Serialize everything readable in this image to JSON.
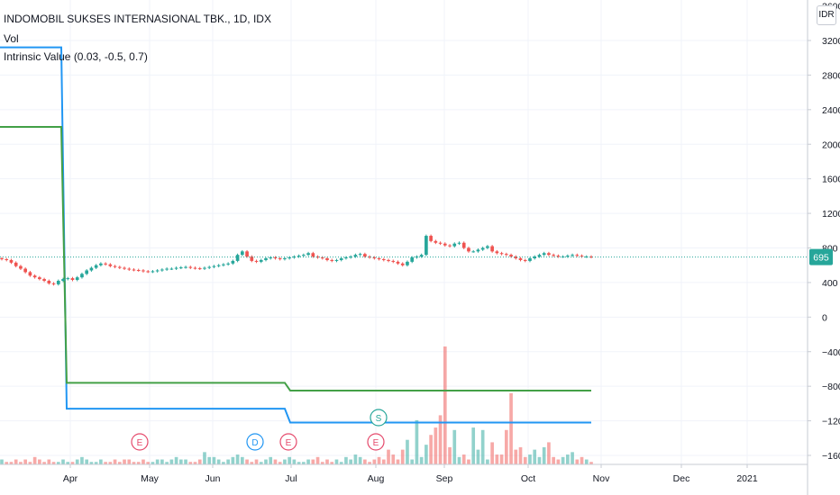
{
  "header": {
    "symbol_title": "INDOMOBIL SUKSES INTERNASIONAL TBK., 1D, IDX",
    "vol_label": "Vol",
    "indicator_label": "Intrinsic Value (0.03, -0.5, 0.7)",
    "currency_button": "IDR"
  },
  "chart_data": {
    "type": "line",
    "title": "INDOMOBIL SUKSES INTERNASIONAL TBK., 1D, IDX",
    "currency": "IDR",
    "last_price": 695,
    "last_price_label": "695",
    "y_axis": {
      "ylim": [
        -1700,
        3700
      ],
      "ticks": [
        3200,
        2800,
        2400,
        2000,
        1600,
        1200,
        800,
        400,
        0,
        -400,
        -800,
        -1200,
        -1600
      ],
      "tick_labels": [
        "3200",
        "2800",
        "2400",
        "2000",
        "1600",
        "1200",
        "800",
        "400",
        "0",
        "−400",
        "−800",
        "−1200",
        "−1600"
      ],
      "top_partial_label": "3600"
    },
    "x_axis": {
      "tick_labels": [
        "Apr",
        "May",
        "Jun",
        "Jul",
        "Aug",
        "Sep",
        "Oct",
        "Nov",
        "Dec",
        "2021"
      ]
    },
    "grid": true,
    "colors": {
      "up": "#26a69a",
      "down": "#ef5350",
      "blue_line": "#2196f3",
      "green_line": "#43a047",
      "price_line": "#26a69a"
    },
    "price_close_series": [
      670,
      660,
      630,
      590,
      560,
      520,
      480,
      460,
      440,
      420,
      390,
      380,
      420,
      440,
      450,
      430,
      460,
      500,
      540,
      570,
      600,
      620,
      610,
      590,
      580,
      570,
      560,
      550,
      545,
      540,
      530,
      525,
      530,
      540,
      550,
      560,
      560,
      570,
      575,
      580,
      570,
      565,
      560,
      570,
      580,
      590,
      600,
      610,
      620,
      650,
      720,
      760,
      700,
      650,
      640,
      660,
      680,
      690,
      680,
      670,
      680,
      690,
      700,
      710,
      720,
      740,
      700,
      690,
      680,
      660,
      650,
      660,
      680,
      690,
      700,
      720,
      730,
      700,
      690,
      680,
      670,
      660,
      650,
      640,
      620,
      600,
      640,
      690,
      700,
      720,
      940,
      880,
      860,
      850,
      830,
      820,
      850,
      860,
      800,
      760,
      760,
      780,
      800,
      820,
      760,
      740,
      730,
      720,
      700,
      680,
      660,
      650,
      680,
      700,
      720,
      740,
      720,
      710,
      700,
      700,
      710,
      720,
      710,
      700,
      700,
      695
    ],
    "volume_series": [
      2,
      1,
      1,
      2,
      1,
      2,
      1,
      3,
      2,
      1,
      2,
      1,
      1,
      2,
      1,
      1,
      2,
      3,
      2,
      1,
      1,
      2,
      1,
      1,
      2,
      1,
      2,
      2,
      1,
      1,
      2,
      1,
      1,
      2,
      2,
      1,
      2,
      3,
      2,
      2,
      1,
      1,
      2,
      5,
      3,
      3,
      2,
      1,
      2,
      3,
      4,
      3,
      2,
      1,
      2,
      1,
      2,
      3,
      2,
      1,
      2,
      3,
      2,
      1,
      1,
      2,
      2,
      3,
      1,
      2,
      1,
      2,
      1,
      3,
      2,
      4,
      3,
      2,
      1,
      2,
      3,
      2,
      6,
      4,
      2,
      6,
      10,
      2,
      18,
      3,
      8,
      12,
      15,
      20,
      48,
      7,
      14,
      3,
      4,
      2,
      15,
      6,
      14,
      2,
      9,
      4,
      4,
      14,
      29,
      6,
      7,
      3,
      4,
      6,
      3,
      7,
      9,
      3,
      2,
      3,
      4,
      5,
      2,
      3,
      2,
      1
    ],
    "series": [
      {
        "values": [
          3120,
          3120,
          -1060,
          -1060,
          -1220,
          -1220
        ]
      },
      {
        "values": [
          2200,
          2200,
          -760,
          -760,
          -850,
          -850
        ]
      }
    ],
    "event_markers": [
      "E",
      "D",
      "E",
      "E",
      "S"
    ]
  }
}
